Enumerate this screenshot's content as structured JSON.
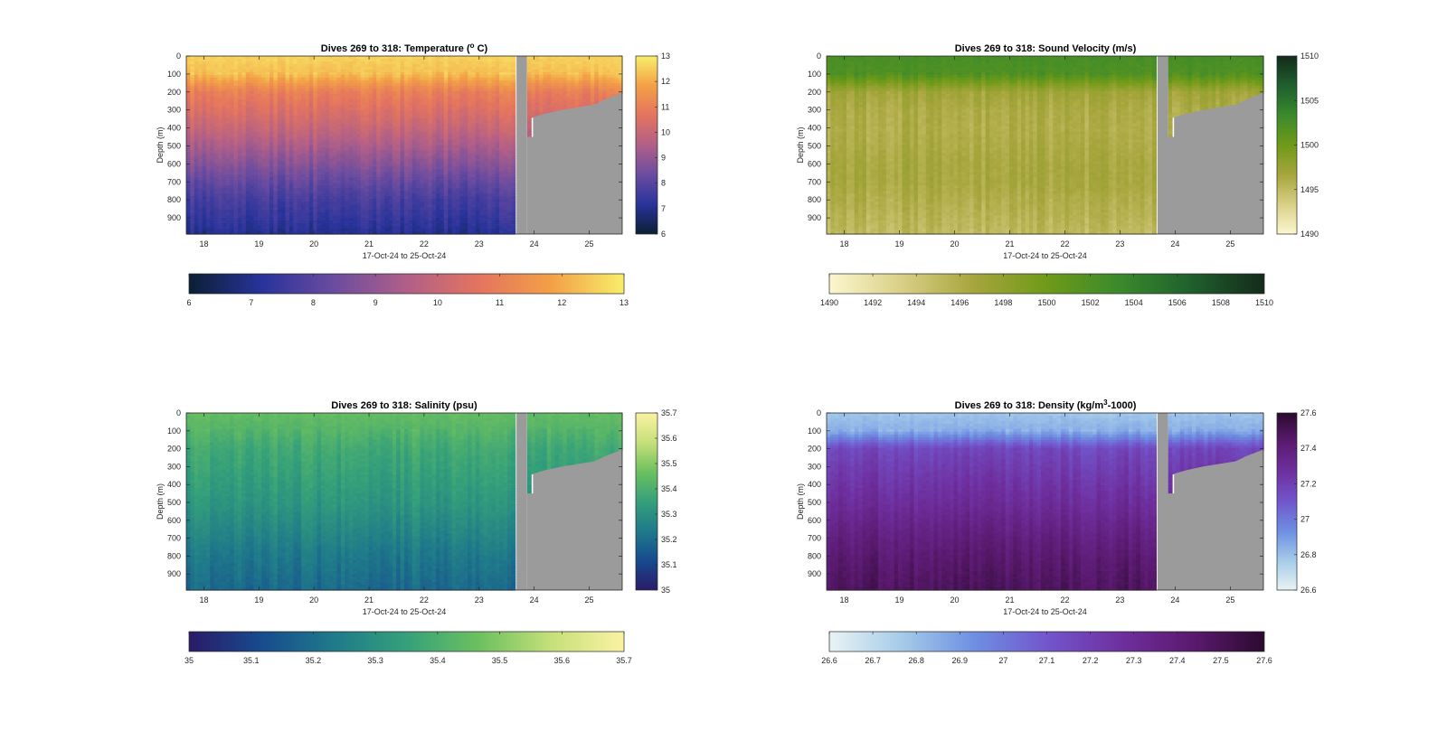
{
  "figure": {
    "background": "#ffffff"
  },
  "chart_data": [
    {
      "type": "heatmap",
      "title_main": "Dives 269 to 318: Temperature (",
      "title_sup": "o",
      "title_end": " C)",
      "xlabel": "17-Oct-24 to 25-Oct-24",
      "ylabel": "Depth (m)",
      "x_ticks": [
        "18",
        "19",
        "20",
        "21",
        "22",
        "23",
        "24",
        "25"
      ],
      "x_range": [
        17.68,
        25.6
      ],
      "y_ticks": [
        "0",
        "100",
        "200",
        "300",
        "400",
        "500",
        "600",
        "700",
        "800",
        "900"
      ],
      "y_range": [
        0,
        990
      ],
      "colormap": [
        "#0b1f33",
        "#28339b",
        "#6b4ca0",
        "#b05f88",
        "#e4745f",
        "#f3a046",
        "#f8ee6a"
      ],
      "cbar_range": [
        6,
        13
      ],
      "cbar_ticks_side": [
        "6",
        "7",
        "8",
        "9",
        "10",
        "11",
        "12",
        "13"
      ],
      "cbar_ticks_bottom": [
        "6",
        "7",
        "8",
        "9",
        "10",
        "11",
        "12",
        "13"
      ],
      "profile_top_to_bottom": [
        12.6,
        12.3,
        11.0,
        10.5,
        10.0,
        9.4,
        8.8,
        8.2,
        7.7,
        7.4,
        7.0
      ],
      "masked_gap_x": [
        23.68,
        23.87
      ],
      "nodata_color": "#9b9b9b"
    },
    {
      "type": "heatmap",
      "title_main": "Dives 269 to 318: Sound Velocity (m/s)",
      "title_sup": "",
      "title_end": "",
      "xlabel": "17-Oct-24 to 25-Oct-24",
      "ylabel": "Depth (m)",
      "x_ticks": [
        "18",
        "19",
        "20",
        "21",
        "22",
        "23",
        "24",
        "25"
      ],
      "x_range": [
        17.68,
        25.6
      ],
      "y_ticks": [
        "0",
        "100",
        "200",
        "300",
        "400",
        "500",
        "600",
        "700",
        "800",
        "900"
      ],
      "y_range": [
        0,
        990
      ],
      "colormap": [
        "#fcf7cf",
        "#d9cf86",
        "#a6a53c",
        "#6f9a18",
        "#3a8a2c",
        "#1f5f2d",
        "#142b1a"
      ],
      "cbar_range": [
        1490,
        1510
      ],
      "cbar_ticks_side": [
        "1490",
        "1495",
        "1500",
        "1505",
        "1510"
      ],
      "cbar_ticks_bottom": [
        "1490",
        "1492",
        "1494",
        "1496",
        "1498",
        "1500",
        "1502",
        "1504",
        "1506",
        "1508",
        "1510"
      ],
      "profile_top_to_bottom": [
        1502.5,
        1502.0,
        1497.0,
        1496.2,
        1496.0,
        1496.2,
        1496.5,
        1496.5,
        1496.0,
        1495.5,
        1495.0
      ],
      "masked_gap_x": [
        23.68,
        23.87
      ],
      "nodata_color": "#9b9b9b"
    },
    {
      "type": "heatmap",
      "title_main": "Dives 269 to 318: Salinity (psu)",
      "title_sup": "",
      "title_end": "",
      "xlabel": "17-Oct-24 to 25-Oct-24",
      "ylabel": "Depth (m)",
      "x_ticks": [
        "18",
        "19",
        "20",
        "21",
        "22",
        "23",
        "24",
        "25"
      ],
      "x_range": [
        17.68,
        25.6
      ],
      "y_ticks": [
        "0",
        "100",
        "200",
        "300",
        "400",
        "500",
        "600",
        "700",
        "800",
        "900"
      ],
      "y_range": [
        0,
        990
      ],
      "colormap": [
        "#2a1a68",
        "#174b8e",
        "#1f7a8a",
        "#35a07a",
        "#6cc05f",
        "#c6e07a",
        "#fbf2a2"
      ],
      "cbar_range": [
        35,
        35.7
      ],
      "cbar_ticks_side": [
        "35",
        "35.1",
        "35.2",
        "35.3",
        "35.4",
        "35.5",
        "35.6",
        "35.7"
      ],
      "cbar_ticks_bottom": [
        "35",
        "35.1",
        "35.2",
        "35.3",
        "35.4",
        "35.5",
        "35.6",
        "35.7"
      ],
      "profile_top_to_bottom": [
        35.45,
        35.42,
        35.38,
        35.36,
        35.34,
        35.32,
        35.29,
        35.26,
        35.23,
        35.21,
        35.19
      ],
      "masked_gap_x": [
        23.68,
        23.87
      ],
      "nodata_color": "#9b9b9b"
    },
    {
      "type": "heatmap",
      "title_main": "Dives 269 to 318: Density (kg/m",
      "title_sup": "3",
      "title_end": "-1000)",
      "xlabel": "17-Oct-24 to 25-Oct-24",
      "ylabel": "Depth (m)",
      "x_ticks": [
        "18",
        "19",
        "20",
        "21",
        "22",
        "23",
        "24",
        "25"
      ],
      "x_range": [
        17.68,
        25.6
      ],
      "y_ticks": [
        "0",
        "100",
        "200",
        "300",
        "400",
        "500",
        "600",
        "700",
        "800",
        "900"
      ],
      "y_range": [
        0,
        990
      ],
      "colormap": [
        "#e9f3f4",
        "#a5cbe9",
        "#6e8fe2",
        "#7256cc",
        "#6f30a0",
        "#5b1a70",
        "#2c0a2f"
      ],
      "cbar_range": [
        26.6,
        27.6
      ],
      "cbar_ticks_side": [
        "26.6",
        "26.8",
        "27",
        "27.2",
        "27.4",
        "27.6"
      ],
      "cbar_ticks_bottom": [
        "26.6",
        "26.7",
        "26.8",
        "26.9",
        "27",
        "27.1",
        "27.2",
        "27.3",
        "27.4",
        "27.5",
        "27.6"
      ],
      "profile_top_to_bottom": [
        26.78,
        26.85,
        27.16,
        27.21,
        27.25,
        27.29,
        27.34,
        27.39,
        27.43,
        27.46,
        27.49
      ],
      "masked_gap_x": [
        23.68,
        23.87
      ],
      "nodata_color": "#9b9b9b"
    }
  ]
}
